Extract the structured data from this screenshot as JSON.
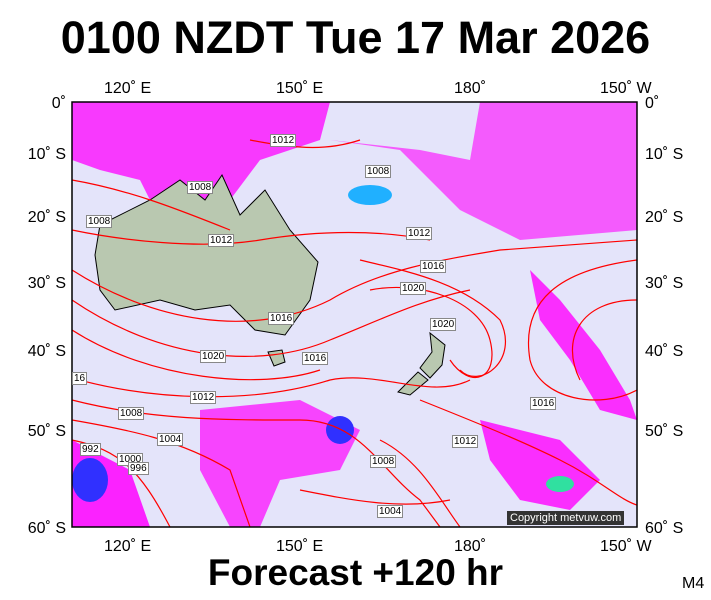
{
  "title": "0100 NZDT Tue 17 Mar 2026",
  "footer": "Forecast +120 hr",
  "model": "M4",
  "copyright": "Copyright metvuw.com",
  "lon_labels": [
    "120˚ E",
    "150˚ E",
    "180˚",
    "150˚ W"
  ],
  "lat_labels": [
    "0˚",
    "10˚ S",
    "20˚ S",
    "30˚ S",
    "40˚ S",
    "50˚ S",
    "60˚ S"
  ],
  "isobar_labels": [
    "1012",
    "1008",
    "1008",
    "1012",
    "1008",
    "1012",
    "1016",
    "1020",
    "1020",
    "1016",
    "1016",
    "1020",
    "16",
    "1012",
    "1008",
    "1004",
    "1000",
    "992",
    "996",
    "1008",
    "1012",
    "1016",
    "1004"
  ],
  "colors": {
    "ocean": "#e4e4fa",
    "land": "#b9c8b0",
    "isobar": "#ff0000",
    "rain": "#ff00ff",
    "heavy_rain": "#3030ff"
  }
}
